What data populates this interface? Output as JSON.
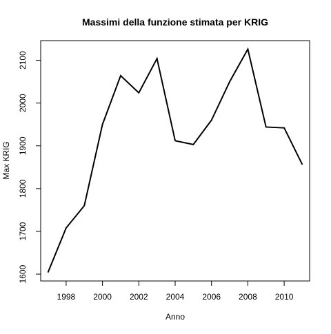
{
  "chart_data": {
    "type": "line",
    "title": "Massimi della funzione stimata per KRIG",
    "xlabel": "Anno",
    "ylabel": "Max KRIG",
    "xlim": [
      1996.6,
      2011.4
    ],
    "ylim": [
      1584,
      2146
    ],
    "x_ticks": [
      1998,
      2000,
      2002,
      2004,
      2006,
      2008,
      2010
    ],
    "y_ticks": [
      1600,
      1700,
      1800,
      1900,
      2000,
      2100
    ],
    "grid": false,
    "legend": "none",
    "line_color": "#000000",
    "series": [
      {
        "x": [
          1997,
          1998,
          1999,
          2000,
          2001,
          2002,
          2003,
          2004,
          2005,
          2006,
          2007,
          2008,
          2009,
          2010,
          2011
        ],
        "values": [
          1604,
          1708,
          1760,
          1950,
          2064,
          2024,
          2104,
          1912,
          1903,
          1960,
          2050,
          2126,
          1944,
          1942,
          1856
        ]
      }
    ]
  }
}
